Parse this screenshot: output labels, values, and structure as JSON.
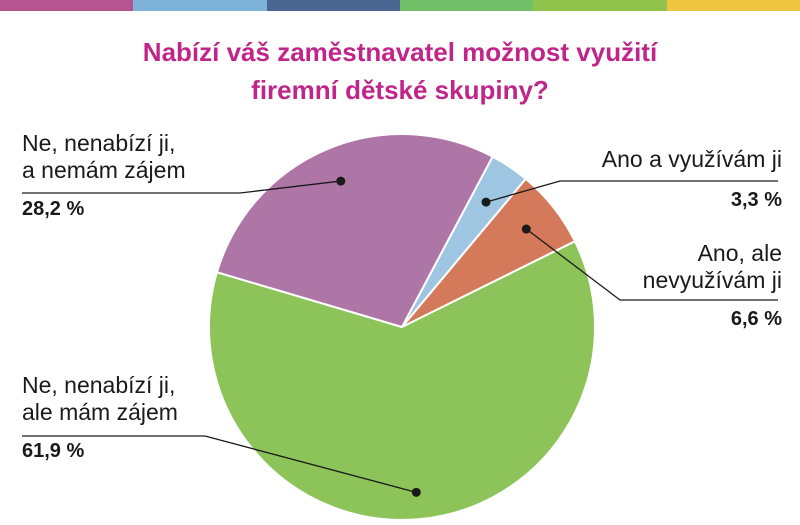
{
  "title": {
    "line1": "Nabízí váš zaměstnavatel možnost využití",
    "line2": "firemní dětské skupiny?"
  },
  "top_bar_colors": [
    "#b5548f",
    "#7fb2d8",
    "#4a6590",
    "#72bf6a",
    "#8fc34c",
    "#eec53f"
  ],
  "chart_data": {
    "type": "pie",
    "title": "Nabízí váš zaměstnavatel možnost využití firemní dětské skupiny?",
    "start_angle_deg": 28,
    "direction": "clockwise",
    "slices": [
      {
        "label": "Ano a využívám ji",
        "value": 3.3,
        "value_text": "3,3 %",
        "color": "#9ec6e2"
      },
      {
        "label": "Ano, ale nevyužívám ji",
        "value": 6.6,
        "value_text": "6,6 %",
        "color": "#d4795a"
      },
      {
        "label": "Ne, nenabízí ji, ale mám zájem",
        "value": 61.9,
        "value_text": "61,9 %",
        "color": "#8dc45a"
      },
      {
        "label": "Ne, nenabízí ji, a nemám zájem",
        "value": 28.2,
        "value_text": "28,2 %",
        "color": "#ae76a6"
      }
    ]
  },
  "labels": {
    "ano_vyuzivam": {
      "line1": "Ano a využívám ji",
      "value": "3,3 %"
    },
    "ano_nevyuzivam": {
      "line1": "Ano, ale",
      "line2": "nevyužívám ji",
      "value": "6,6 %"
    },
    "ne_zajem": {
      "line1": "Ne, nenabízí ji,",
      "line2": "ale mám zájem",
      "value": "61,9 %"
    },
    "ne_nezajem": {
      "line1": "Ne, nenabízí ji,",
      "line2": "a nemám zájem",
      "value": "28,2 %"
    }
  }
}
